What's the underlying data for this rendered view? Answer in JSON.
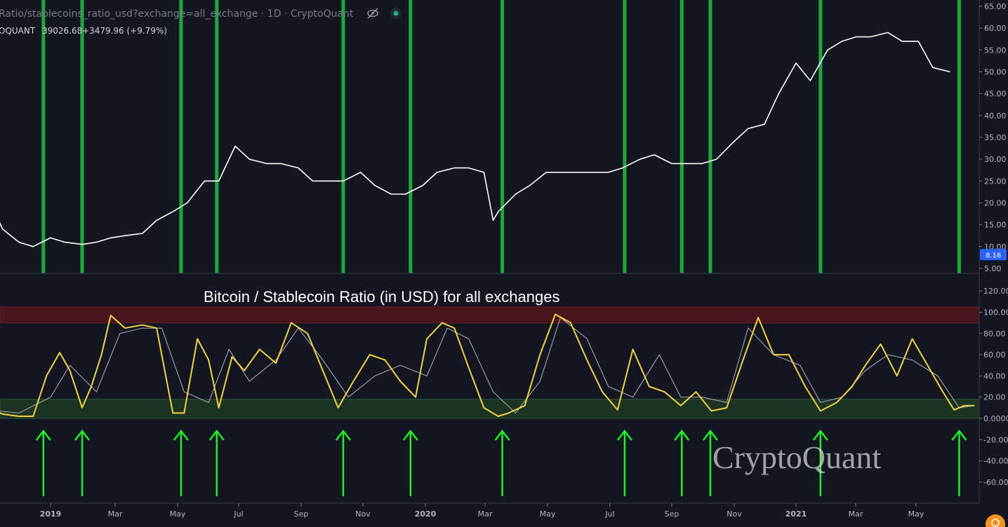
{
  "header": {
    "title": "Ratio/stablecoins_ratio_usd?exchange=all_exchange · 1D · CryptoQuant",
    "source_fragment": "OQUANT",
    "value_text": "39026.68",
    "change_text": "+3479.96 (+9.79%)",
    "visibility_icon": "eye-slash-icon",
    "status_icon": "status-dot-icon"
  },
  "watermark": "CryptoQuant",
  "colors": {
    "background": "#131722",
    "price_line": "#ffffff",
    "ratio_line": "#f5d340",
    "signal_line": "#aeb3bd",
    "signal_bars": "#1fa83a",
    "arrows": "#21f02a",
    "high_zone": "#4a151d",
    "low_zone": "#1d3324",
    "last_value_tag": "#2962ff"
  },
  "x_axis": {
    "ticks": [
      "2019",
      "Mar",
      "May",
      "Jul",
      "Sep",
      "Nov",
      "2020",
      "Mar",
      "May",
      "Jul",
      "Sep",
      "Nov",
      "2021",
      "Mar",
      "May"
    ]
  },
  "chart_data": [
    {
      "type": "line",
      "title": "Ratio/stablecoins_ratio_usd?exchange=all_exchange · 1D · CryptoQuant",
      "x_unit": "date",
      "ylim": [
        5,
        65
      ],
      "y_ticks": [
        "65.00",
        "60.00",
        "55.00",
        "50.00",
        "45.00",
        "40.00",
        "35.00",
        "30.00",
        "25.00",
        "20.00",
        "15.00",
        "10.00",
        "5.00"
      ],
      "last_value_label": "8.16",
      "series": [
        {
          "name": "",
          "x": [
            "2018-11-01",
            "2018-11-15",
            "2018-12-01",
            "2018-12-15",
            "2019-01-01",
            "2019-01-15",
            "2019-02-01",
            "2019-02-15",
            "2019-03-01",
            "2019-03-15",
            "2019-04-01",
            "2019-04-15",
            "2019-05-01",
            "2019-05-15",
            "2019-06-01",
            "2019-06-15",
            "2019-07-01",
            "2019-07-15",
            "2019-08-01",
            "2019-08-15",
            "2019-09-01",
            "2019-09-15",
            "2019-10-01",
            "2019-10-15",
            "2019-11-01",
            "2019-11-15",
            "2019-12-01",
            "2019-12-15",
            "2020-01-01",
            "2020-01-15",
            "2020-02-01",
            "2020-02-15",
            "2020-03-01",
            "2020-03-10",
            "2020-03-15",
            "2020-04-01",
            "2020-04-15",
            "2020-05-01",
            "2020-05-15",
            "2020-06-01",
            "2020-06-15",
            "2020-07-01",
            "2020-07-15",
            "2020-08-01",
            "2020-08-15",
            "2020-09-01",
            "2020-09-15",
            "2020-10-01",
            "2020-10-15",
            "2020-11-01",
            "2020-11-15",
            "2020-12-01",
            "2020-12-15",
            "2021-01-01",
            "2021-01-15",
            "2021-02-01",
            "2021-02-15",
            "2021-03-01",
            "2021-03-15",
            "2021-04-01",
            "2021-04-15",
            "2021-05-01",
            "2021-05-15",
            "2021-06-01"
          ],
          "y": [
            21,
            14,
            11,
            10,
            12,
            11,
            10.5,
            11,
            12,
            12.5,
            13,
            16,
            18,
            20,
            25,
            25,
            33,
            30,
            29,
            29,
            28,
            25,
            25,
            25,
            27,
            24,
            22,
            22,
            24,
            27,
            28,
            28,
            27,
            16,
            18,
            22,
            24,
            27,
            27,
            27,
            27,
            27,
            28,
            30,
            31,
            29,
            29,
            29,
            30,
            34,
            37,
            38,
            45,
            52,
            48,
            55,
            57,
            58,
            58,
            59,
            57,
            57,
            51,
            50
          ]
        }
      ]
    },
    {
      "type": "line",
      "title": "Bitcoin / Stablecoin Ratio (in USD) for all exchanges",
      "x_unit": "date",
      "ylim": [
        -75,
        125
      ],
      "y_ticks": [
        "120.00",
        "100.00",
        "80.00",
        "60.00",
        "40.00",
        "20.00",
        "0.0000",
        "-20.00",
        "-40.00",
        "-60.00"
      ],
      "bands": [
        {
          "from": 90,
          "to": 105,
          "color": "#4a151d"
        },
        {
          "from": 0,
          "to": 18,
          "color": "#1d3324"
        }
      ],
      "series": [
        {
          "name": "",
          "x": [
            "2018-11-01",
            "2018-11-15",
            "2018-12-01",
            "2018-12-15",
            "2018-12-28",
            "2019-01-10",
            "2019-01-20",
            "2019-02-01",
            "2019-02-10",
            "2019-02-20",
            "2019-03-01",
            "2019-03-15",
            "2019-04-01",
            "2019-04-15",
            "2019-05-01",
            "2019-05-12",
            "2019-05-25",
            "2019-06-05",
            "2019-06-15",
            "2019-06-28",
            "2019-07-10",
            "2019-07-25",
            "2019-08-10",
            "2019-08-25",
            "2019-09-10",
            "2019-09-25",
            "2019-10-10",
            "2019-10-25",
            "2019-11-10",
            "2019-11-25",
            "2019-12-10",
            "2019-12-25",
            "2020-01-05",
            "2020-01-20",
            "2020-02-01",
            "2020-02-15",
            "2020-03-01",
            "2020-03-15",
            "2020-03-25",
            "2020-04-10",
            "2020-04-25",
            "2020-05-10",
            "2020-05-25",
            "2020-06-10",
            "2020-06-25",
            "2020-07-10",
            "2020-07-25",
            "2020-08-10",
            "2020-08-25",
            "2020-09-10",
            "2020-09-25",
            "2020-10-10",
            "2020-10-25",
            "2020-11-10",
            "2020-11-25",
            "2020-12-10",
            "2020-12-25",
            "2021-01-10",
            "2021-01-25",
            "2021-02-10",
            "2021-02-25",
            "2021-03-10",
            "2021-03-25",
            "2021-04-10",
            "2021-04-25",
            "2021-05-10",
            "2021-05-25",
            "2021-06-05",
            "2021-06-15",
            "2021-06-25"
          ],
          "y": [
            10,
            4,
            2,
            2,
            40,
            62,
            45,
            10,
            30,
            60,
            97,
            85,
            88,
            85,
            5,
            5,
            75,
            55,
            10,
            58,
            45,
            65,
            52,
            90,
            80,
            45,
            10,
            35,
            60,
            55,
            35,
            20,
            75,
            90,
            85,
            48,
            10,
            2,
            5,
            12,
            60,
            98,
            90,
            55,
            25,
            8,
            65,
            30,
            25,
            12,
            25,
            7,
            10,
            55,
            95,
            60,
            60,
            30,
            7,
            15,
            30,
            50,
            70,
            40,
            75,
            50,
            25,
            8,
            12,
            12
          ]
        },
        {
          "name": "",
          "x": [
            "2018-11-01",
            "2018-12-01",
            "2019-01-01",
            "2019-01-20",
            "2019-02-15",
            "2019-03-10",
            "2019-04-01",
            "2019-04-20",
            "2019-05-12",
            "2019-06-05",
            "2019-06-25",
            "2019-07-15",
            "2019-08-10",
            "2019-09-01",
            "2019-09-25",
            "2019-10-20",
            "2019-11-15",
            "2019-12-10",
            "2020-01-05",
            "2020-01-25",
            "2020-02-15",
            "2020-03-10",
            "2020-04-01",
            "2020-04-25",
            "2020-05-15",
            "2020-06-10",
            "2020-07-01",
            "2020-07-25",
            "2020-08-20",
            "2020-09-10",
            "2020-10-01",
            "2020-10-25",
            "2020-11-15",
            "2020-12-10",
            "2021-01-05",
            "2021-01-25",
            "2021-02-15",
            "2021-03-10",
            "2021-04-01",
            "2021-04-25",
            "2021-05-20",
            "2021-06-10",
            "2021-06-25"
          ],
          "y": [
            8,
            5,
            20,
            50,
            25,
            80,
            85,
            85,
            25,
            15,
            65,
            35,
            55,
            85,
            55,
            20,
            40,
            50,
            40,
            85,
            75,
            25,
            5,
            35,
            95,
            75,
            30,
            20,
            60,
            20,
            20,
            15,
            85,
            60,
            50,
            15,
            20,
            45,
            60,
            55,
            40,
            10,
            12
          ]
        }
      ],
      "signal_dates": [
        "2018-12-25",
        "2019-02-01",
        "2019-05-09",
        "2019-06-13",
        "2019-10-15",
        "2019-12-20",
        "2020-03-19",
        "2020-07-17",
        "2020-09-11",
        "2020-10-09",
        "2021-01-25",
        "2021-06-10"
      ]
    }
  ]
}
